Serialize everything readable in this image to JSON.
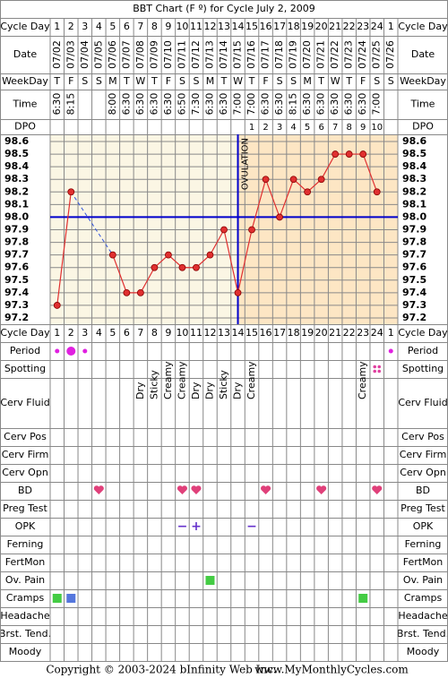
{
  "title": "BBT Chart (F º) for Cycle July 2, 2009",
  "labels": {
    "cycle_day": "Cycle Day",
    "date": "Date",
    "weekday": "WeekDay",
    "time": "Time",
    "dpo": "DPO",
    "period": "Period",
    "spotting": "Spotting",
    "cerv_fluid": "Cerv Fluid",
    "cerv_pos": "Cerv Pos",
    "cerv_firm": "Cerv Firm",
    "cerv_opn": "Cerv Opn",
    "bd": "BD",
    "preg_test": "Preg Test",
    "opk": "OPK",
    "ferning": "Ferning",
    "fertmon": "FertMon",
    "ov_pain": "Ov. Pain",
    "cramps": "Cramps",
    "headache": "Headache",
    "brst_tend": "Brst. Tend.",
    "moody": "Moody"
  },
  "cycle_days": [
    1,
    2,
    3,
    4,
    5,
    6,
    7,
    8,
    9,
    10,
    11,
    12,
    13,
    14,
    15,
    16,
    17,
    18,
    19,
    20,
    21,
    22,
    23,
    24,
    1
  ],
  "dates": [
    "07/02",
    "07/03",
    "07/04",
    "07/05",
    "07/06",
    "07/07",
    "07/08",
    "07/09",
    "07/10",
    "07/11",
    "07/12",
    "07/13",
    "07/14",
    "07/15",
    "07/16",
    "07/17",
    "07/18",
    "07/19",
    "07/20",
    "07/21",
    "07/22",
    "07/23",
    "07/24",
    "07/25",
    "07/26"
  ],
  "weekdays": [
    "T",
    "F",
    "S",
    "S",
    "M",
    "T",
    "W",
    "T",
    "F",
    "S",
    "S",
    "M",
    "T",
    "W",
    "T",
    "F",
    "S",
    "S",
    "M",
    "T",
    "W",
    "T",
    "F",
    "S",
    "S"
  ],
  "times": [
    "6:30",
    "8:15",
    null,
    null,
    "8:00",
    "6:30",
    "6:30",
    "6:30",
    "6:30",
    "6:50",
    "7:30",
    "6:30",
    "6:30",
    "7:00",
    "7:00",
    "6:30",
    "6:30",
    "8:15",
    "6:30",
    "6:30",
    "6:30",
    "6:30",
    "6:30",
    "7:00",
    null
  ],
  "dpo": [
    null,
    null,
    null,
    null,
    null,
    null,
    null,
    null,
    null,
    null,
    null,
    null,
    null,
    null,
    1,
    2,
    3,
    4,
    5,
    6,
    7,
    8,
    9,
    10,
    null
  ],
  "chart_data": {
    "type": "line",
    "values": [
      97.3,
      98.2,
      null,
      null,
      97.7,
      97.4,
      97.4,
      97.6,
      97.7,
      97.6,
      97.6,
      97.7,
      97.9,
      97.4,
      97.9,
      98.3,
      98.0,
      98.3,
      98.2,
      98.3,
      98.5,
      98.5,
      98.5,
      98.2,
      null
    ],
    "color": "#e03030",
    "ylim": [
      97.2,
      98.6
    ],
    "yticks": [
      97.2,
      97.3,
      97.4,
      97.5,
      97.6,
      97.7,
      97.8,
      97.9,
      {
        "value": 98.0,
        "label": "98.0"
      },
      98.1,
      98.2,
      98.3,
      98.4,
      98.5,
      98.6
    ],
    "grid": true,
    "coverline": 98.0,
    "coverline_color": "#0000cc",
    "ovulation_day": 14,
    "ovulation_label": "OVULATION"
  },
  "period": [
    1,
    2,
    1,
    null,
    null,
    null,
    null,
    null,
    null,
    null,
    null,
    null,
    null,
    null,
    null,
    null,
    null,
    null,
    null,
    null,
    null,
    null,
    null,
    null,
    1
  ],
  "spotting": [
    null,
    null,
    null,
    null,
    null,
    null,
    null,
    null,
    null,
    null,
    null,
    null,
    null,
    null,
    null,
    null,
    null,
    null,
    null,
    null,
    null,
    null,
    null,
    true,
    null
  ],
  "cerv_fluid": [
    null,
    null,
    null,
    null,
    null,
    null,
    "Dry",
    "Sticky",
    "Creamy",
    "Creamy",
    "Dry",
    "Dry",
    "Sticky",
    "Dry",
    "Creamy",
    null,
    null,
    null,
    null,
    null,
    null,
    null,
    "Creamy",
    null,
    null
  ],
  "bd": [
    null,
    null,
    null,
    true,
    null,
    null,
    null,
    null,
    null,
    true,
    true,
    null,
    null,
    null,
    null,
    true,
    null,
    null,
    null,
    true,
    null,
    null,
    null,
    true,
    null
  ],
  "opk": [
    null,
    null,
    null,
    null,
    null,
    null,
    null,
    null,
    null,
    "−",
    "+",
    null,
    null,
    null,
    "−",
    null,
    null,
    null,
    null,
    null,
    null,
    null,
    null,
    null,
    null
  ],
  "ov_pain": [
    null,
    null,
    null,
    null,
    null,
    null,
    null,
    null,
    null,
    null,
    null,
    "#44cc44",
    null,
    null,
    null,
    null,
    null,
    null,
    null,
    null,
    null,
    null,
    null,
    null,
    null
  ],
  "cramps": [
    "#44cc44",
    "#5577dd",
    null,
    null,
    null,
    null,
    null,
    null,
    null,
    null,
    null,
    null,
    null,
    null,
    null,
    null,
    null,
    null,
    null,
    null,
    null,
    null,
    "#44cc44",
    null,
    null
  ],
  "footer": {
    "copyright": "Copyright © 2003-2024 bInfinity Web Inc.",
    "site": "www.MyMonthlyCycles.com"
  }
}
